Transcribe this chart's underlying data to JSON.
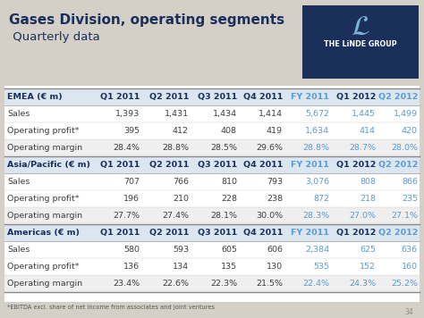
{
  "title_line1": "Gases Division, operating segments",
  "title_line2": " Quarterly data",
  "bg_color": "#d4d0c8",
  "logo_bg": "#1a2f5a",
  "sections": [
    {
      "header": [
        "EMEA (€ m)",
        "Q1 2011",
        "Q2 2011",
        "Q3 2011",
        "Q4 2011",
        "FY 2011",
        "Q1 2012",
        "Q2 2012"
      ],
      "rows": [
        [
          "Sales",
          "1,393",
          "1,431",
          "1,434",
          "1,414",
          "5,672",
          "1,445",
          "1,499"
        ],
        [
          "Operating profit*",
          "395",
          "412",
          "408",
          "419",
          "1,634",
          "414",
          "420"
        ],
        [
          "Operating margin",
          "28.4%",
          "28.8%",
          "28.5%",
          "29.6%",
          "28.8%",
          "28.7%",
          "28.0%"
        ]
      ]
    },
    {
      "header": [
        "Asia/Pacific (€ m)",
        "Q1 2011",
        "Q2 2011",
        "Q3 2011",
        "Q4 2011",
        "FY 2011",
        "Q1 2012",
        "Q2 2012"
      ],
      "rows": [
        [
          "Sales",
          "707",
          "766",
          "810",
          "793",
          "3,076",
          "808",
          "866"
        ],
        [
          "Operating profit*",
          "196",
          "210",
          "228",
          "238",
          "872",
          "218",
          "235"
        ],
        [
          "Operating margin",
          "27.7%",
          "27.4%",
          "28.1%",
          "30.0%",
          "28.3%",
          "27.0%",
          "27.1%"
        ]
      ]
    },
    {
      "header": [
        "Americas (€ m)",
        "Q1 2011",
        "Q2 2011",
        "Q3 2011",
        "Q4 2011",
        "FY 2011",
        "Q1 2012",
        "Q2 2012"
      ],
      "rows": [
        [
          "Sales",
          "580",
          "593",
          "605",
          "606",
          "2,384",
          "625",
          "636"
        ],
        [
          "Operating profit*",
          "136",
          "134",
          "135",
          "130",
          "535",
          "152",
          "160"
        ],
        [
          "Operating margin",
          "23.4%",
          "22.6%",
          "22.3%",
          "21.5%",
          "22.4%",
          "24.3%",
          "25.2%"
        ]
      ]
    }
  ],
  "fy_color": "#5b9bd5",
  "header_text_dark": "#1a2f5a",
  "normal_text": "#3f3f3f",
  "header_row_bg": "#dce6f1",
  "margin_row_bg": "#efefef",
  "footnote": "*EBITDA excl. share of net income from associates and joint ventures",
  "page_num": "34"
}
